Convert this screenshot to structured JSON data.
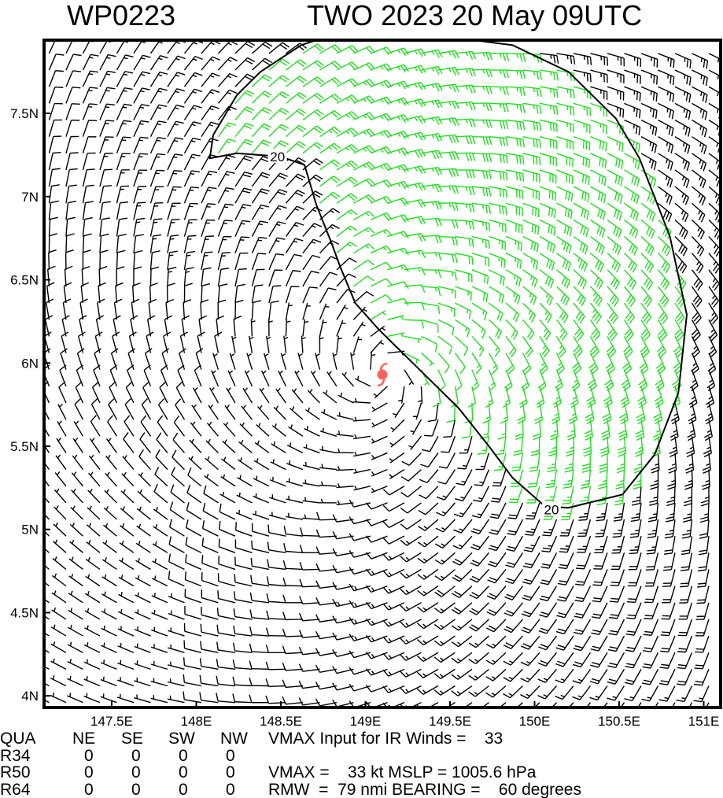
{
  "header": {
    "storm_id": "WP0223",
    "product": "TWO 2023 20 May 09UTC"
  },
  "chart_data": {
    "type": "wind-barb-map",
    "xlim": [
      147.1,
      151.1
    ],
    "ylim": [
      3.93,
      7.94
    ],
    "x_ticks": [
      {
        "value": 147.5,
        "label": "147.5E"
      },
      {
        "value": 148.0,
        "label": "148E"
      },
      {
        "value": 148.5,
        "label": "148.5E"
      },
      {
        "value": 149.0,
        "label": "149E"
      },
      {
        "value": 149.5,
        "label": "149.5E"
      },
      {
        "value": 150.0,
        "label": "150E"
      },
      {
        "value": 150.5,
        "label": "150.5E"
      },
      {
        "value": 151.0,
        "label": "151E"
      }
    ],
    "y_ticks": [
      {
        "value": 7.5,
        "label": "7.5N"
      },
      {
        "value": 7.0,
        "label": "7N"
      },
      {
        "value": 6.5,
        "label": "6.5N"
      },
      {
        "value": 6.0,
        "label": "6N"
      },
      {
        "value": 5.5,
        "label": "5.5N"
      },
      {
        "value": 5.0,
        "label": "5N"
      },
      {
        "value": 4.5,
        "label": "4.5N"
      },
      {
        "value": 4.0,
        "label": "4N"
      }
    ],
    "center": {
      "lon": 149.1,
      "lat": 5.93,
      "icon": "tropical-storm-icon",
      "color": "#ff6060"
    },
    "barb_color": "#000000",
    "barb_color_above_threshold": "#22dd22",
    "grid_spacing_deg": 0.1,
    "vmax_kt": 33,
    "rmw_nmi": 79,
    "bearing_deg": 60,
    "contour": {
      "level": 20,
      "labels": [
        {
          "text": "20",
          "lon": 148.48,
          "lat": 7.24
        },
        {
          "text": "20",
          "lon": 150.1,
          "lat": 5.12
        }
      ],
      "points": [
        [
          148.71,
          7.94
        ],
        [
          148.62,
          7.91
        ],
        [
          148.38,
          7.75
        ],
        [
          148.24,
          7.61
        ],
        [
          148.1,
          7.37
        ],
        [
          148.08,
          7.23
        ],
        [
          148.24,
          7.26
        ],
        [
          148.5,
          7.24
        ],
        [
          148.64,
          7.19
        ],
        [
          148.71,
          6.95
        ],
        [
          148.8,
          6.72
        ],
        [
          148.85,
          6.58
        ],
        [
          148.94,
          6.36
        ],
        [
          149.08,
          6.2
        ],
        [
          149.22,
          6.06
        ],
        [
          149.36,
          5.92
        ],
        [
          149.55,
          5.73
        ],
        [
          149.73,
          5.5
        ],
        [
          149.87,
          5.31
        ],
        [
          150.06,
          5.14
        ],
        [
          150.2,
          5.13
        ],
        [
          150.52,
          5.21
        ],
        [
          150.71,
          5.45
        ],
        [
          150.85,
          5.82
        ],
        [
          150.9,
          6.29
        ],
        [
          150.8,
          6.76
        ],
        [
          150.62,
          7.23
        ],
        [
          150.48,
          7.47
        ],
        [
          150.2,
          7.75
        ],
        [
          149.87,
          7.91
        ],
        [
          149.64,
          7.94
        ]
      ]
    }
  },
  "info_table": {
    "headers": [
      "QUA",
      "NE",
      "SE",
      "SW",
      "NW"
    ],
    "rows": [
      {
        "label": "R34",
        "values": [
          "0",
          "0",
          "0",
          "0"
        ]
      },
      {
        "label": "R50",
        "values": [
          "0",
          "0",
          "0",
          "0"
        ]
      },
      {
        "label": "R64",
        "values": [
          "0",
          "0",
          "0",
          "0"
        ]
      }
    ],
    "vmax_input_text": "VMAX Input for IR Winds =    33",
    "vmax_mslp_text": "VMAX =    33 kt MSLP = 1005.6 hPa",
    "rmw_bearing_text": "RMW  =  79 nmi BEARING =    60 degrees"
  }
}
